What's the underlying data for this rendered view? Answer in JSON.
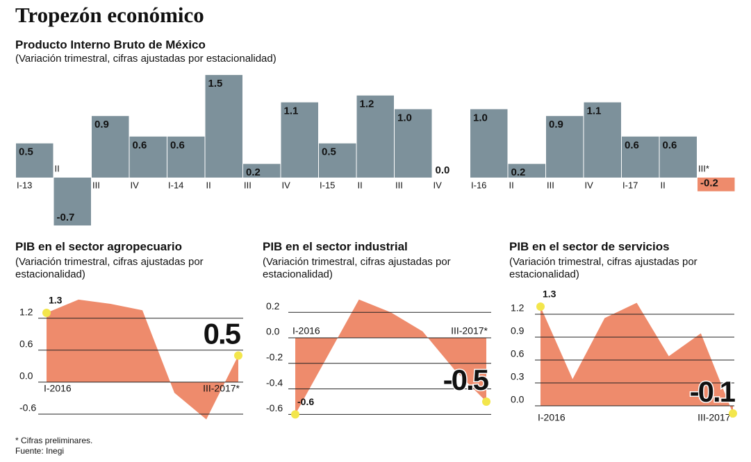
{
  "title": "Tropezón económico",
  "footnote": "* Cifras preliminares.",
  "source": "Fuente: Inegi",
  "chart_data": [
    {
      "type": "bar",
      "title": "Producto Interno Bruto de México",
      "subtitle": "(Variación trimestral, cifras ajustadas por estacionalidad)",
      "categories": [
        "I-13",
        "II",
        "III",
        "IV",
        "I-14",
        "II",
        "III",
        "IV",
        "I-15",
        "II",
        "III",
        "IV",
        "I-16",
        "II",
        "III",
        "IV",
        "I-17",
        "II",
        "III*"
      ],
      "values": [
        0.5,
        -0.7,
        0.9,
        0.6,
        0.6,
        1.5,
        0.2,
        1.1,
        0.5,
        1.2,
        1.0,
        0.0,
        1.0,
        0.2,
        0.9,
        1.1,
        0.6,
        0.6,
        -0.2
      ],
      "value_labels": [
        "0.5",
        "-0.7",
        "0.9",
        "0.6",
        "0.6",
        "1.5",
        "0.2",
        "1.1",
        "0.5",
        "1.2",
        "1.0",
        "0.0",
        "1.0",
        "0.2",
        "0.9",
        "1.1",
        "0.6",
        "0.6",
        "-0.2"
      ],
      "colors": [
        "#7d919b",
        "#7d919b",
        "#7d919b",
        "#7d919b",
        "#7d919b",
        "#7d919b",
        "#7d919b",
        "#7d919b",
        "#7d919b",
        "#7d919b",
        "#7d919b",
        "#7d919b",
        "#7d919b",
        "#7d919b",
        "#7d919b",
        "#7d919b",
        "#7d919b",
        "#7d919b",
        "#ee8b6c"
      ]
    },
    {
      "type": "area",
      "title": "PIB en el sector agropecuario",
      "subtitle": "(Variación trimestral, cifras ajustadas por estacionalidad)",
      "categories": [
        "I-2016",
        null,
        null,
        null,
        null,
        null,
        "III-2017*"
      ],
      "values": [
        1.3,
        1.55,
        1.47,
        1.35,
        -0.2,
        -0.7,
        0.5
      ],
      "value_labels": [
        "1.3",
        null,
        null,
        null,
        null,
        null,
        "0.5"
      ],
      "ylim": [
        -0.75,
        1.6
      ],
      "yticks": [
        1.2,
        0.6,
        {
          "value": 0,
          "label": "0.0"
        },
        -0.6
      ],
      "grid": true,
      "color": "#ee8b6c",
      "marker_color": "#f3e64c"
    },
    {
      "type": "area",
      "title": "PIB en el sector industrial",
      "subtitle": "(Variación trimestral, cifras ajustadas por estacionalidad)",
      "categories": [
        "I-2016",
        null,
        null,
        null,
        null,
        null,
        "III-2017*"
      ],
      "values": [
        -0.6,
        -0.15,
        0.3,
        0.2,
        0.05,
        -0.25,
        -0.5
      ],
      "value_labels": [
        "-0.6",
        null,
        null,
        null,
        null,
        null,
        "-0.5"
      ],
      "ylim": [
        -0.65,
        0.4
      ],
      "yticks": [
        0.2,
        {
          "value": 0,
          "label": "0.0"
        },
        -0.2,
        -0.4,
        -0.6
      ],
      "grid": true,
      "color": "#ee8b6c",
      "marker_color": "#f3e64c"
    },
    {
      "type": "area",
      "title": "PIB en el sector de servicios",
      "subtitle": "(Variación trimestral, cifras ajustadas por estacionalidad)",
      "categories": [
        "I-2016",
        null,
        null,
        null,
        null,
        null,
        "III-2017*"
      ],
      "values": [
        1.3,
        0.35,
        1.15,
        1.35,
        0.65,
        0.95,
        -0.1
      ],
      "value_labels": [
        "1.3",
        null,
        null,
        null,
        null,
        null,
        "-0.1"
      ],
      "ylim": [
        -0.15,
        1.4
      ],
      "yticks": [
        1.2,
        0.9,
        0.6,
        0.3,
        {
          "value": 0,
          "label": "0.0"
        }
      ],
      "grid": true,
      "color": "#ee8b6c",
      "marker_color": "#f3e64c"
    }
  ]
}
